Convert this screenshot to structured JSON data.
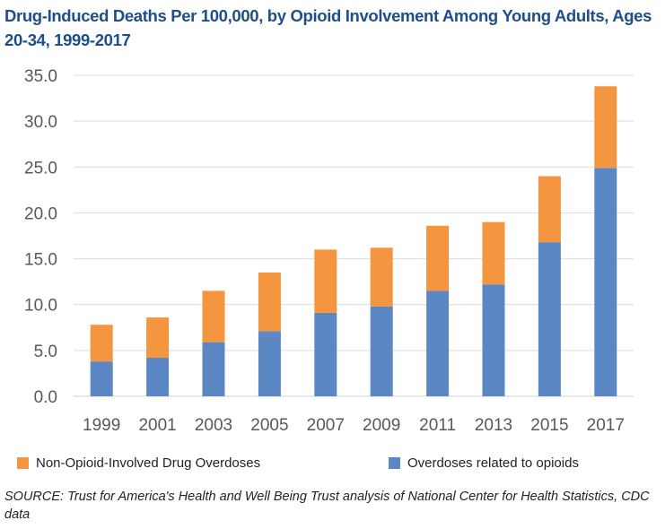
{
  "chart_data": {
    "type": "bar",
    "stacked": true,
    "title": "Drug-Induced Deaths Per 100,000, by Opioid Involvement Among Young Adults, Ages 20-34, 1999-2017",
    "categories": [
      "1999",
      "2001",
      "2003",
      "2005",
      "2007",
      "2009",
      "2011",
      "2013",
      "2015",
      "2017"
    ],
    "series": [
      {
        "name": "Overdoses related to opioids",
        "color": "#5b87c5",
        "values": [
          3.8,
          4.2,
          5.9,
          7.1,
          9.1,
          9.8,
          11.5,
          12.2,
          16.8,
          24.9
        ]
      },
      {
        "name": "Non-Opioid-Involved Drug Overdoses",
        "color": "#f3963f",
        "values": [
          4.0,
          4.4,
          5.6,
          6.4,
          6.9,
          6.4,
          7.1,
          6.8,
          7.2,
          8.9
        ]
      }
    ],
    "ylim": [
      0,
      35
    ],
    "yticks": [
      "0.0",
      "5.0",
      "10.0",
      "15.0",
      "20.0",
      "25.0",
      "30.0",
      "35.0"
    ],
    "grid": true,
    "legend_position": "bottom",
    "xlabel": "",
    "ylabel": ""
  },
  "legend": {
    "non_opioid": "Non-Opioid-Involved Drug Overdoses",
    "opioid": "Overdoses related to opioids"
  },
  "source": "SOURCE: Trust for America's Health and Well Being Trust analysis of National Center for Health Statistics, CDC data"
}
